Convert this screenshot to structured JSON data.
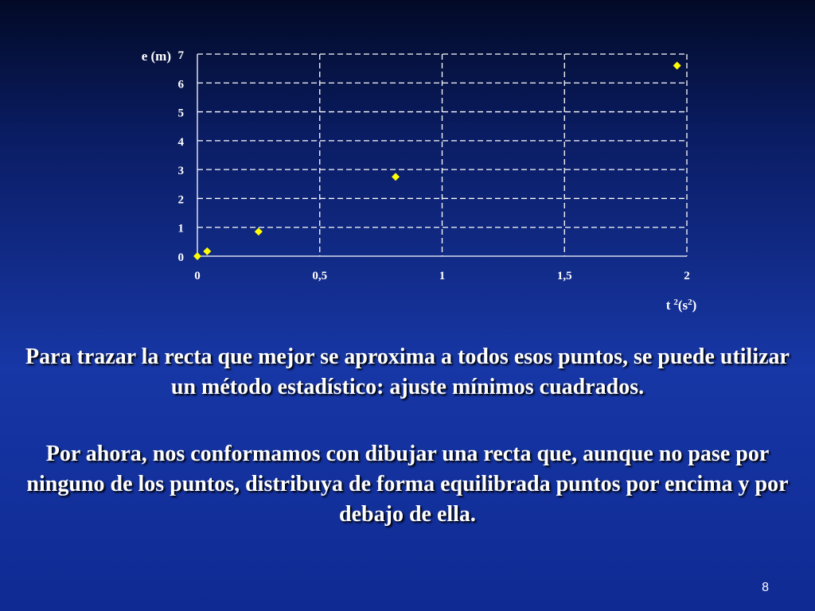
{
  "chart_data": {
    "type": "scatter",
    "xlabel": "t 2(s2)",
    "ylabel": "e (m)",
    "xlim": [
      0,
      2
    ],
    "ylim": [
      0,
      7
    ],
    "x_ticks": [
      0,
      0.5,
      1,
      1.5,
      2
    ],
    "x_tick_labels": [
      "0",
      "0,5",
      "1",
      "1,5",
      "2"
    ],
    "y_ticks": [
      0,
      1,
      2,
      3,
      4,
      5,
      6,
      7
    ],
    "y_tick_labels": [
      "0",
      "1",
      "2",
      "3",
      "4",
      "5",
      "6",
      "7"
    ],
    "grid": true,
    "marker": "diamond",
    "marker_color": "#ffff00",
    "points": [
      {
        "x": 0,
        "y": 0
      },
      {
        "x": 0.04,
        "y": 0.17
      },
      {
        "x": 0.25,
        "y": 0.85
      },
      {
        "x": 0.81,
        "y": 2.75
      },
      {
        "x": 1.96,
        "y": 6.6
      }
    ]
  },
  "xlabel_parts": {
    "base": "t",
    "exp1": "2",
    "unit_open": "(s",
    "exp2": "2",
    "unit_close": ")"
  },
  "text": {
    "paragraph1": "Para trazar la recta que mejor se aproxima a todos esos puntos, se puede utilizar un método estadístico: ajuste mínimos cuadrados.",
    "paragraph2": "Por ahora, nos conformamos con dibujar una recta que, aunque no pase por ninguno de los puntos, distribuya de forma equilibrada puntos por encima y por debajo de ella."
  },
  "slide_number": "8",
  "colors": {
    "text": "#ffffff",
    "marker": "#ffff00",
    "grid": "#ffffff"
  }
}
